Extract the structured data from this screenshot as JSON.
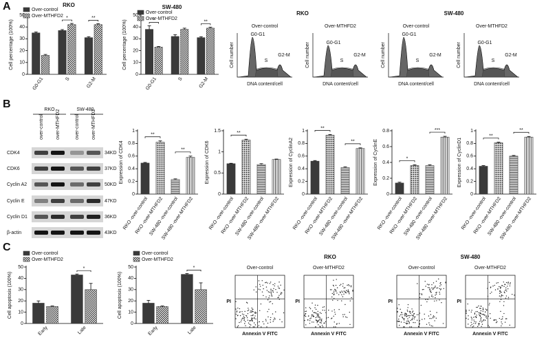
{
  "panel_labels": [
    "A",
    "B",
    "C"
  ],
  "chart_data": [
    {
      "type": "bar",
      "title": "RKO",
      "ylabel": "Cell percentage (100%)",
      "categories": [
        "G0-G1",
        "S",
        "G2-M"
      ],
      "series": [
        {
          "name": "Over-control",
          "color": "#3a3a3a",
          "pattern": "solid",
          "values": [
            35,
            37,
            31
          ],
          "errors": [
            0.8,
            0.8,
            0.8
          ]
        },
        {
          "name": "Over-MTHFD2",
          "color": "#3a3a3a",
          "pattern": "checker",
          "values": [
            16,
            42,
            42
          ],
          "errors": [
            0.8,
            1,
            0.8
          ]
        }
      ],
      "ylim": [
        0,
        50
      ],
      "yticks": [
        0,
        10,
        20,
        30,
        40,
        50
      ],
      "significance": [
        null,
        "*",
        "**"
      ]
    },
    {
      "type": "bar",
      "title": "SW-480",
      "ylabel": "Cell percentage (100%)",
      "categories": [
        "G0-G1",
        "S",
        "G2-M"
      ],
      "series": [
        {
          "name": "Over-control",
          "color": "#3a3a3a",
          "pattern": "solid",
          "values": [
            38,
            32,
            31
          ],
          "errors": [
            3,
            1.5,
            0.8
          ]
        },
        {
          "name": "Over-MTHFD2",
          "color": "#3a3a3a",
          "pattern": "checker",
          "values": [
            23,
            38,
            39
          ],
          "errors": [
            0.5,
            1,
            0.8
          ]
        }
      ],
      "ylim": [
        0,
        50
      ],
      "yticks": [
        0,
        10,
        20,
        30,
        40,
        50
      ],
      "significance": [
        "*",
        null,
        "**"
      ]
    },
    {
      "type": "bar",
      "ylabel": "Expression of CDK4",
      "categories": [
        "RKO -over-control",
        "RKO -over-MTHFD2",
        "SW-480 -over-control",
        "SW-480 -over-MTHFD2"
      ],
      "values": [
        0.49,
        0.82,
        0.23,
        0.58
      ],
      "errors": [
        0.01,
        0.02,
        0.01,
        0.02
      ],
      "color": "#3a3a3a",
      "patterns": [
        "solid",
        "dots",
        "hlines",
        "vlines"
      ],
      "ylim": [
        0,
        1
      ],
      "yticks": [
        0,
        0.2,
        0.4,
        0.6,
        0.8,
        1
      ],
      "pair_significance": [
        "**",
        "**"
      ]
    },
    {
      "type": "bar",
      "ylabel": "Expression of CDK6",
      "categories": [
        "RKO -over-control",
        "RKO -over-MTHFD2",
        "SW-480 -over-control",
        "SW-480 -over-MTHFD2"
      ],
      "values": [
        0.72,
        1.28,
        0.7,
        0.82
      ],
      "errors": [
        0.01,
        0.02,
        0.02,
        0.01
      ],
      "color": "#3a3a3a",
      "patterns": [
        "solid",
        "dots",
        "hlines",
        "vlines"
      ],
      "ylim": [
        0,
        1.5
      ],
      "yticks": [
        0,
        0.5,
        1,
        1.5
      ],
      "pair_significance": [
        "**",
        null
      ]
    },
    {
      "type": "bar",
      "ylabel": "Expression of CyclinA2",
      "categories": [
        "RKO -over-control",
        "RKO -over-MTHFD2",
        "SW-480 -over-control",
        "SW-480 -over-MTHFD2"
      ],
      "values": [
        0.52,
        0.93,
        0.42,
        0.72
      ],
      "errors": [
        0.01,
        0.01,
        0.01,
        0.01
      ],
      "color": "#3a3a3a",
      "patterns": [
        "solid",
        "dots",
        "hlines",
        "vlines"
      ],
      "ylim": [
        0,
        1
      ],
      "yticks": [
        0,
        0.2,
        0.4,
        0.6,
        0.8,
        1
      ],
      "pair_significance": [
        "**",
        "**"
      ]
    },
    {
      "type": "bar",
      "ylabel": "Expression of CyclinE",
      "categories": [
        "RKO -over-control",
        "RKO -over-MTHFD2",
        "SW-480 -over-control",
        "SW-480 -over-MTHFD2"
      ],
      "values": [
        0.14,
        0.36,
        0.36,
        0.72
      ],
      "errors": [
        0.01,
        0.01,
        0.01,
        0.01
      ],
      "color": "#3a3a3a",
      "patterns": [
        "solid",
        "dots",
        "hlines",
        "vlines"
      ],
      "ylim": [
        0,
        0.8
      ],
      "yticks": [
        0,
        0.2,
        0.4,
        0.6,
        0.8
      ],
      "pair_significance": [
        "*",
        "***"
      ]
    },
    {
      "type": "bar",
      "ylabel": "Expression of CyclinD1",
      "categories": [
        "RKO -over-control",
        "RKO -over-MTHFD2",
        "SW-480 -over-control",
        "SW-480 -over-MTHFD2"
      ],
      "values": [
        0.44,
        0.81,
        0.6,
        0.9
      ],
      "errors": [
        0.01,
        0.01,
        0.01,
        0.01
      ],
      "color": "#3a3a3a",
      "patterns": [
        "solid",
        "dots",
        "hlines",
        "vlines"
      ],
      "ylim": [
        0,
        1
      ],
      "yticks": [
        0,
        0.2,
        0.4,
        0.6,
        0.8,
        1
      ],
      "pair_significance": [
        "**",
        "**"
      ]
    },
    {
      "type": "bar",
      "ylabel": "Cell apoptosis (100%)",
      "categories": [
        "Early",
        "Late"
      ],
      "series": [
        {
          "name": "Over-control",
          "color": "#3a3a3a",
          "pattern": "solid",
          "values": [
            18,
            43
          ],
          "errors": [
            2,
            0.8
          ]
        },
        {
          "name": "Over-MTHFD2",
          "color": "#3a3a3a",
          "pattern": "checker",
          "values": [
            15,
            30
          ],
          "errors": [
            0.5,
            5.5
          ]
        }
      ],
      "ylim": [
        0,
        50
      ],
      "yticks": [
        0,
        10,
        20,
        30,
        40,
        50
      ],
      "significance": [
        null,
        "*"
      ]
    },
    {
      "type": "bar",
      "ylabel": "Cell apoptosis (100%)",
      "categories": [
        "Early",
        "Late"
      ],
      "series": [
        {
          "name": "Over-control",
          "color": "#3a3a3a",
          "pattern": "solid",
          "values": [
            18,
            43.5
          ],
          "errors": [
            2.5,
            0.8
          ]
        },
        {
          "name": "Over-MTHFD2",
          "color": "#3a3a3a",
          "pattern": "checker",
          "values": [
            15,
            30
          ],
          "errors": [
            0.5,
            6
          ]
        }
      ],
      "ylim": [
        0,
        50
      ],
      "yticks": [
        0,
        10,
        20,
        30,
        40,
        50
      ],
      "significance": [
        null,
        "*"
      ]
    }
  ],
  "cell_cycle_histograms": {
    "groups": [
      "RKO",
      "SW-480"
    ],
    "panels": [
      "Over-control",
      "Over-MTHFD2",
      "Over-control",
      "Over-MTHFD2"
    ],
    "ylabel": "Cell number",
    "xlabel": "DNA content/cell",
    "phases": [
      "G0-G1",
      "S",
      "G2-M"
    ]
  },
  "western_blot": {
    "groups": [
      "RKO",
      "SW-480"
    ],
    "lanes": [
      "over-control",
      "over-MTHFD2",
      "over-control",
      "over-MTHFD2"
    ],
    "rows": [
      {
        "protein": "CDK4",
        "size": "34KD"
      },
      {
        "protein": "CDK6",
        "size": "37KD"
      },
      {
        "protein": "Cyclin A2",
        "size": "50KD"
      },
      {
        "protein": "Cyclin E",
        "size": "47KD"
      },
      {
        "protein": "Cyclin D1",
        "size": "36KD"
      },
      {
        "protein": "β-actin",
        "size": "43KD"
      }
    ]
  },
  "apoptosis_plots": {
    "groups": [
      "RKO",
      "SW-480"
    ],
    "panels": [
      "Over-control",
      "Over-MTHFD2",
      "Over-control",
      "Over-MTHFD2"
    ],
    "xlabel": "Annexin V FITC",
    "ylabel": "PI"
  }
}
